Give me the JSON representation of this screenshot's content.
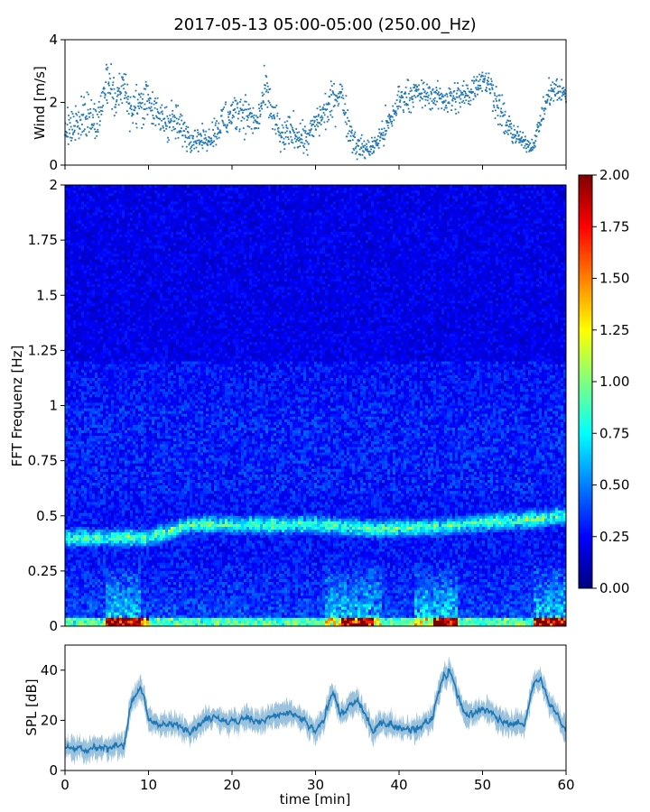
{
  "chart_data": [
    {
      "type": "scatter",
      "panel": "wind",
      "title": "2017-05-13 05:00-05:00 (250.00_Hz)",
      "ylabel": "Wind [m/s]",
      "xlim": [
        0,
        60
      ],
      "ylim": [
        0,
        4
      ],
      "yticks": [
        "0",
        "2",
        "4"
      ],
      "marker_color": "#1f77b4",
      "series": [
        {
          "name": "wind",
          "anchors": {
            "x": [
              0,
              2,
              4,
              5,
              6,
              7,
              8,
              10,
              11,
              13,
              15,
              17,
              19,
              21,
              23,
              24,
              25,
              26,
              27,
              29,
              30,
              32,
              33,
              34,
              35,
              36,
              37,
              39,
              40,
              42,
              44,
              46,
              48,
              50,
              51,
              52,
              53,
              55,
              56,
              58,
              59,
              60
            ],
            "y": [
              0.9,
              1.5,
              1.4,
              2.8,
              2.0,
              2.6,
              1.7,
              2.2,
              1.5,
              1.4,
              0.9,
              0.8,
              1.4,
              1.8,
              1.3,
              2.4,
              1.5,
              0.8,
              1.1,
              0.8,
              1.3,
              2.0,
              2.4,
              1.2,
              0.6,
              0.5,
              0.6,
              1.4,
              2.1,
              2.3,
              2.2,
              2.1,
              2.2,
              2.8,
              2.5,
              1.8,
              1.2,
              0.7,
              0.6,
              2.3,
              2.4,
              2.2
            ],
            "spread": [
              0.6,
              0.8,
              0.7,
              0.7,
              0.6,
              0.5,
              0.6,
              0.7,
              0.6,
              0.6,
              0.4,
              0.3,
              0.6,
              0.6,
              0.5,
              0.6,
              0.7,
              0.5,
              0.5,
              0.5,
              0.5,
              0.6,
              0.5,
              0.6,
              0.4,
              0.3,
              0.3,
              0.6,
              0.5,
              0.4,
              0.4,
              0.5,
              0.5,
              0.4,
              0.4,
              0.6,
              0.5,
              0.2,
              0.2,
              0.4,
              0.4,
              0.4
            ]
          }
        }
      ]
    },
    {
      "type": "heatmap",
      "panel": "spectrogram",
      "ylabel": "FFT Frequenz [Hz]",
      "xlim": [
        0,
        60
      ],
      "ylim": [
        0,
        2
      ],
      "yticks": [
        "0",
        "0.25",
        "0.5",
        "0.75",
        "1",
        "1.25",
        "1.5",
        "1.75",
        "2"
      ],
      "colormap": "jet",
      "colorbar": {
        "vmin": 0.0,
        "vmax": 2.0,
        "ticks": [
          "0.00",
          "0.25",
          "0.50",
          "0.75",
          "1.00",
          "1.25",
          "1.50",
          "1.75",
          "2.00"
        ],
        "colors": [
          "#00007f",
          "#0000ff",
          "#007fff",
          "#00ffff",
          "#7fff7f",
          "#ffff00",
          "#ff7f00",
          "#ff0000",
          "#7f0000"
        ]
      },
      "features": {
        "background_level": 0.28,
        "band_center_hz": [
          [
            0,
            0.4
          ],
          [
            10,
            0.4
          ],
          [
            15,
            0.46
          ],
          [
            20,
            0.46
          ],
          [
            25,
            0.46
          ],
          [
            30,
            0.46
          ],
          [
            37,
            0.44
          ],
          [
            45,
            0.45
          ],
          [
            50,
            0.47
          ],
          [
            55,
            0.48
          ],
          [
            60,
            0.5
          ]
        ],
        "band_level": 0.7,
        "low_freq_active_minutes": [
          [
            5,
            9
          ],
          [
            31,
            38
          ],
          [
            42,
            47
          ],
          [
            56,
            60
          ]
        ],
        "near_zero_red_minutes": [
          [
            5,
            10
          ],
          [
            33,
            37
          ],
          [
            44,
            47
          ],
          [
            56,
            60
          ]
        ]
      }
    },
    {
      "type": "line",
      "panel": "spl",
      "xlabel": "time [min]",
      "ylabel": "SPL [dB]",
      "xlim": [
        0,
        60
      ],
      "ylim": [
        0,
        50
      ],
      "xticks": [
        "0",
        "10",
        "20",
        "30",
        "40",
        "50",
        "60"
      ],
      "yticks": [
        "0",
        "20",
        "40"
      ],
      "line_color": "#1f77b4",
      "series": [
        {
          "name": "SPL",
          "anchors": {
            "x": [
              0,
              2,
              5,
              7,
              8,
              9,
              10,
              12,
              15,
              18,
              20,
              22,
              24,
              26,
              28,
              30,
              31,
              32,
              33,
              35,
              37,
              38,
              40,
              42,
              44,
              45,
              46,
              47,
              48,
              50,
              52,
              55,
              56,
              57,
              58,
              60
            ],
            "y": [
              9,
              9,
              9,
              10,
              28,
              34,
              20,
              18,
              17,
              22,
              19,
              21,
              20,
              23,
              21,
              15,
              20,
              33,
              22,
              28,
              15,
              20,
              17,
              16,
              21,
              35,
              40,
              30,
              22,
              25,
              20,
              18,
              34,
              36,
              26,
              17
            ]
          }
        }
      ]
    }
  ]
}
